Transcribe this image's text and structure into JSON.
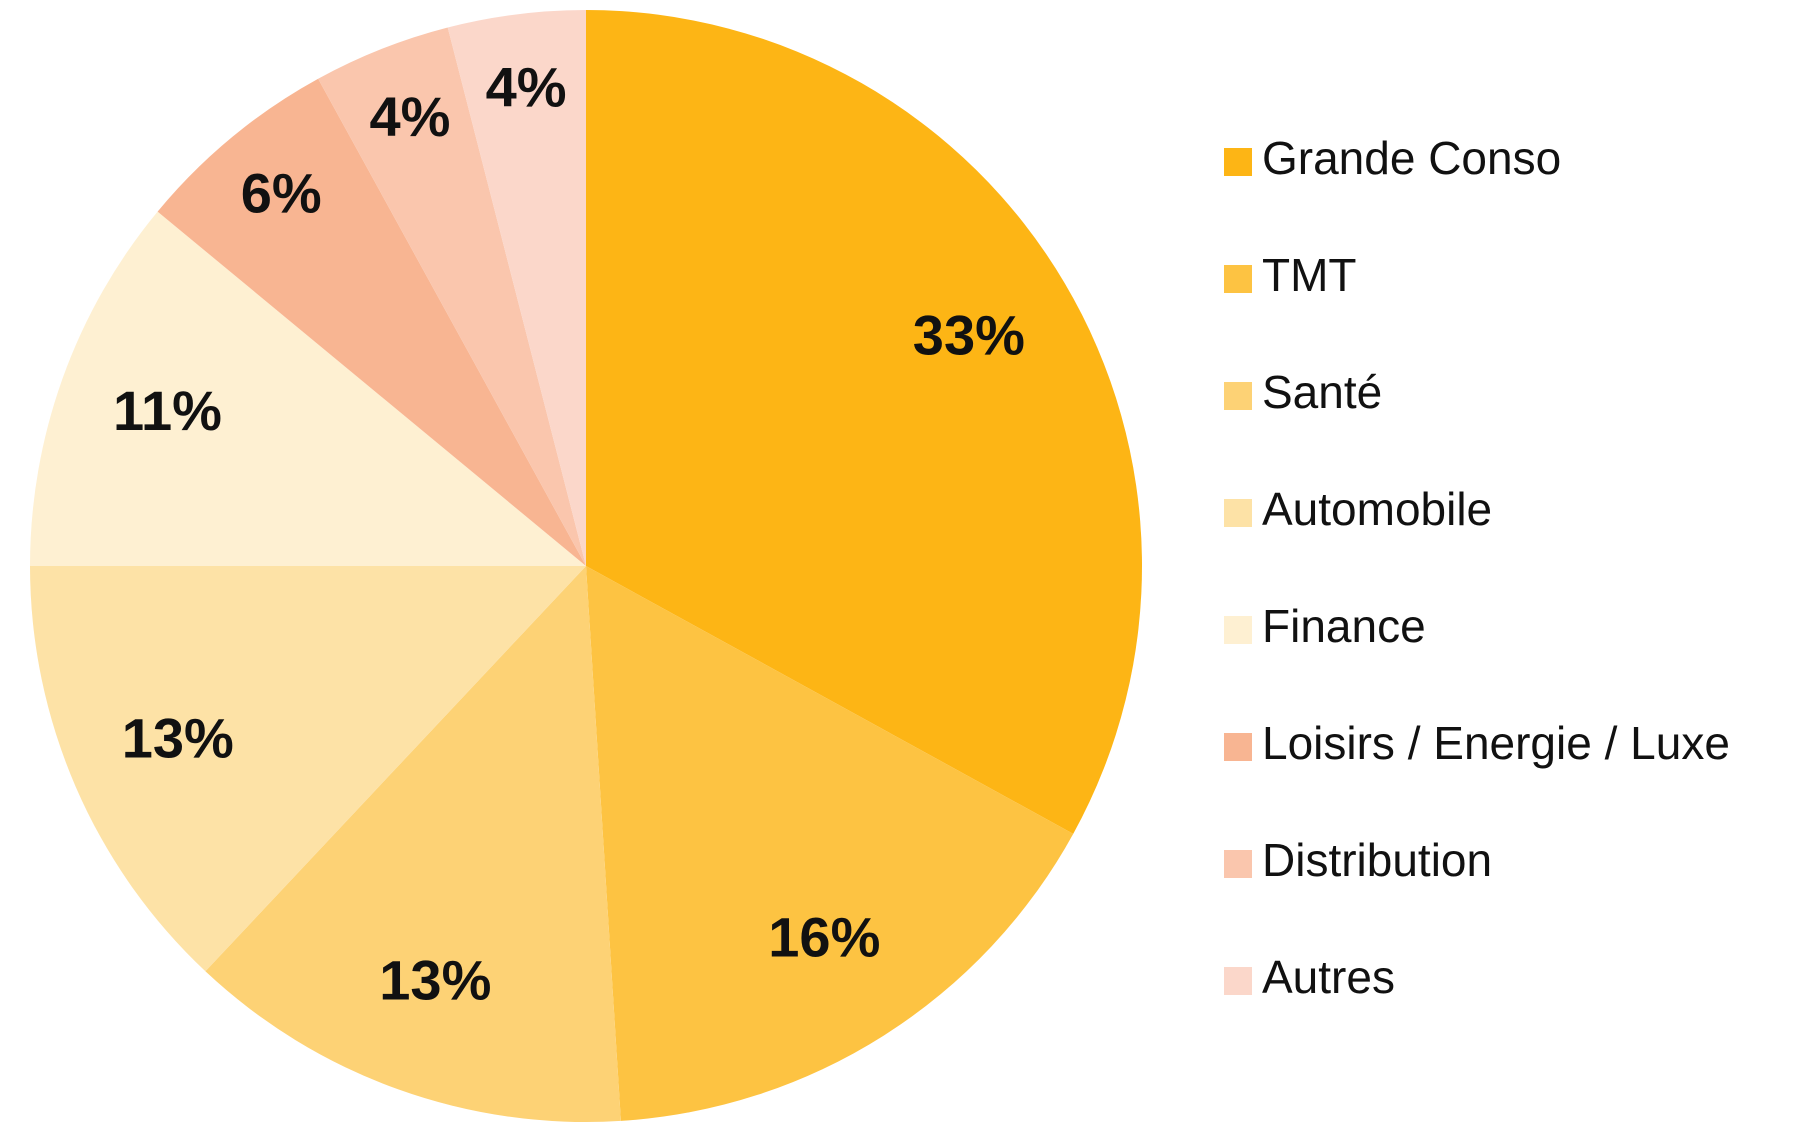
{
  "chart_data": {
    "type": "pie",
    "categories": [
      "Grande Conso",
      "TMT",
      "Santé",
      "Automobile",
      "Finance",
      "Loisirs / Energie / Luxe",
      "Distribution",
      "Autres"
    ],
    "values": [
      33,
      16,
      13,
      13,
      11,
      6,
      4,
      4
    ],
    "value_labels": [
      "33%",
      "16%",
      "13%",
      "13%",
      "11%",
      "6%",
      "4%",
      "4%"
    ],
    "colors": [
      "#FDB515",
      "#FDC342",
      "#FDD275",
      "#FDE2A6",
      "#FEF0D2",
      "#F8B592",
      "#FAC6AD",
      "#FBD7CA"
    ],
    "legend": "right"
  }
}
